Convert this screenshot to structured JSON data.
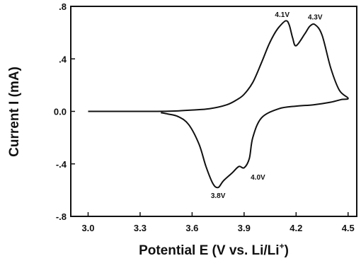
{
  "chart_data": {
    "type": "line",
    "xlabel": "Potential E (V vs. Li/Li",
    "xlabel_sup": "+",
    "xlabel_close": ")",
    "ylabel": "Current  I (mA)",
    "xlim": [
      2.9,
      4.55
    ],
    "ylim": [
      -0.8,
      0.8
    ],
    "xticks": [
      3.0,
      3.3,
      3.6,
      3.9,
      4.2,
      4.5
    ],
    "xtick_labels": [
      "3.0",
      "3.3",
      "3.6",
      "3.9",
      "4.2",
      "4.5"
    ],
    "yticks": [
      0.8,
      0.4,
      0.0,
      -0.4,
      -0.8
    ],
    "ytick_labels": [
      ".8",
      ".4",
      "0.0",
      "-.4",
      "-.8"
    ],
    "grid": false,
    "line_color": "#111111",
    "series": [
      {
        "x": [
          3.0,
          3.2,
          3.4,
          3.5,
          3.6,
          3.7,
          3.8,
          3.86,
          3.9,
          3.95,
          4.0,
          4.04,
          4.07,
          4.1,
          4.14,
          4.16,
          4.18,
          4.2,
          4.25,
          4.28,
          4.31,
          4.35,
          4.4,
          4.45,
          4.5,
          4.46,
          4.4,
          4.3,
          4.2,
          4.1,
          4.0,
          3.95,
          3.93,
          3.9,
          3.87,
          3.83,
          3.78,
          3.75,
          3.72,
          3.68,
          3.64,
          3.58,
          3.52,
          3.46,
          3.42
        ],
        "y": [
          0.0,
          0.0,
          0.0,
          0.003,
          0.01,
          0.02,
          0.05,
          0.09,
          0.13,
          0.22,
          0.37,
          0.5,
          0.58,
          0.64,
          0.69,
          0.66,
          0.56,
          0.5,
          0.59,
          0.65,
          0.66,
          0.58,
          0.33,
          0.16,
          0.1,
          0.09,
          0.07,
          0.05,
          0.04,
          0.02,
          -0.05,
          -0.2,
          -0.36,
          -0.43,
          -0.42,
          -0.47,
          -0.53,
          -0.58,
          -0.55,
          -0.42,
          -0.25,
          -0.1,
          -0.04,
          -0.02,
          -0.01
        ]
      }
    ],
    "annotations": [
      {
        "text": "4.1V",
        "x": 4.12,
        "y": 0.72
      },
      {
        "text": "4.3V",
        "x": 4.31,
        "y": 0.7
      },
      {
        "text": "3.8V",
        "x": 3.75,
        "y": -0.66
      },
      {
        "text": "4.0V",
        "x": 3.98,
        "y": -0.52
      }
    ]
  }
}
